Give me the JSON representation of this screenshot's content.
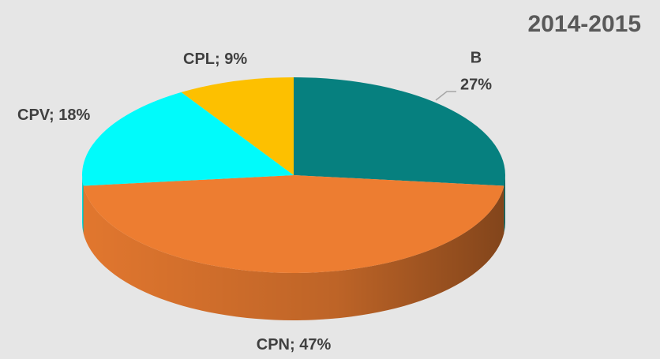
{
  "chart_data": {
    "type": "pie3d",
    "title": "2014-2015",
    "categories": [
      "B",
      "CPN",
      "CPV",
      "CPL"
    ],
    "values": [
      27,
      47,
      18,
      9
    ],
    "value_labels": [
      "27%",
      "47%",
      "18%",
      "9%"
    ],
    "label_separator": "; ",
    "colors": [
      "#06807f",
      "#ed7d31",
      "#00fbfb",
      "#fdc000"
    ]
  }
}
